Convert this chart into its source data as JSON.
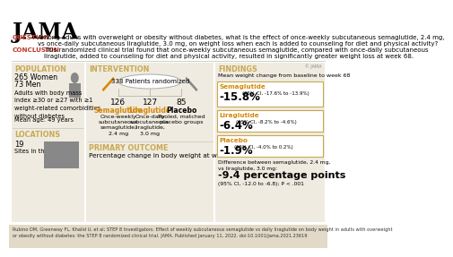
{
  "title": "JAMA",
  "question_label": "QUESTION",
  "question_text": "Among adults with overweight or obesity without diabetes, what is the effect of once-weekly subcutaneous semaglutide, 2.4 mg,\nvs once-daily subcutaneous liraglutide, 3.0 mg, on weight loss when each is added to counseling for diet and physical activity?",
  "conclusion_label": "CONCLUSION",
  "conclusion_text": "This randomized clinical trial found that once-weekly subcutaneous semaglutide, compared with once-daily subcutaneous\nliraglutide, added to counseling for diet and physical activity, resulted in significantly greater weight loss at week 68.",
  "pop_label": "POPULATION",
  "pop_line1": "265 Women",
  "pop_line2": "73 Men",
  "pop_desc": "Adults with body mass\nindex ≥30 or ≥27 with ≥1\nweight-related comorbidities,\nwithout diabetes",
  "pop_age": "Mean age: 49 years",
  "loc_label": "LOCATIONS",
  "loc_count": "19",
  "loc_desc": "Sites in the US",
  "intervention_label": "INTERVENTION",
  "randomized_text": "338 Patients randomized",
  "sema_n": "126",
  "sema_name": "Semaglutide",
  "sema_desc": "Once-weekly\nsubcutaneous\nsemaglutide,\n2.4 mg",
  "lira_n": "127",
  "lira_name": "Liraglutide",
  "lira_desc": "Once-daily\nsubcutaneous\nliraglutide,\n3.0 mg",
  "placebo_n": "85",
  "placebo_name": "Placebo",
  "placebo_desc": "Pooled, matched\nplacebo groups",
  "primary_label": "PRIMARY OUTCOME",
  "primary_text": "Percentage change in body weight at week 68",
  "findings_label": "FINDINGS",
  "findings_subtitle": "Mean weight change from baseline to week 68",
  "sema_pct": "-15.8%",
  "sema_ci": "(95% CI, -17.6% to -13.9%)",
  "lira_pct": "-6.4%",
  "lira_ci": "(95% CI, -8.2% to -4.6%)",
  "placebo_pct": "-1.9%",
  "placebo_ci": "(95% CI, -4.0% to 0.2%)",
  "diff_label": "Difference between semaglutide, 2.4 mg,\nvs liraglutide, 3.0 mg:",
  "diff_value": "-9.4 percentage points",
  "diff_ci": "(95% CI, -12.0 to -6.8); P < .001",
  "citation": "Rubino DM, Greenway FL, Khalid U, et al; STEP 8 Investigators. Effect of weekly subcutaneous semaglutide vs daily liraglutide on body weight in adults with overweight\nor obesity without diabetes: the STEP 8 randomized clinical trial. JAMA. Published January 11, 2022. doi:10.1001/jama.2021.23619",
  "color_red": "#C0392B",
  "color_orange": "#D4880A",
  "color_dark": "#333333",
  "color_bg_main": "#F0EBE0",
  "color_bg_white": "#FFFFFF",
  "color_section_label": "#C8A951",
  "color_gray": "#888888",
  "color_citation_bg": "#E2D9C8"
}
